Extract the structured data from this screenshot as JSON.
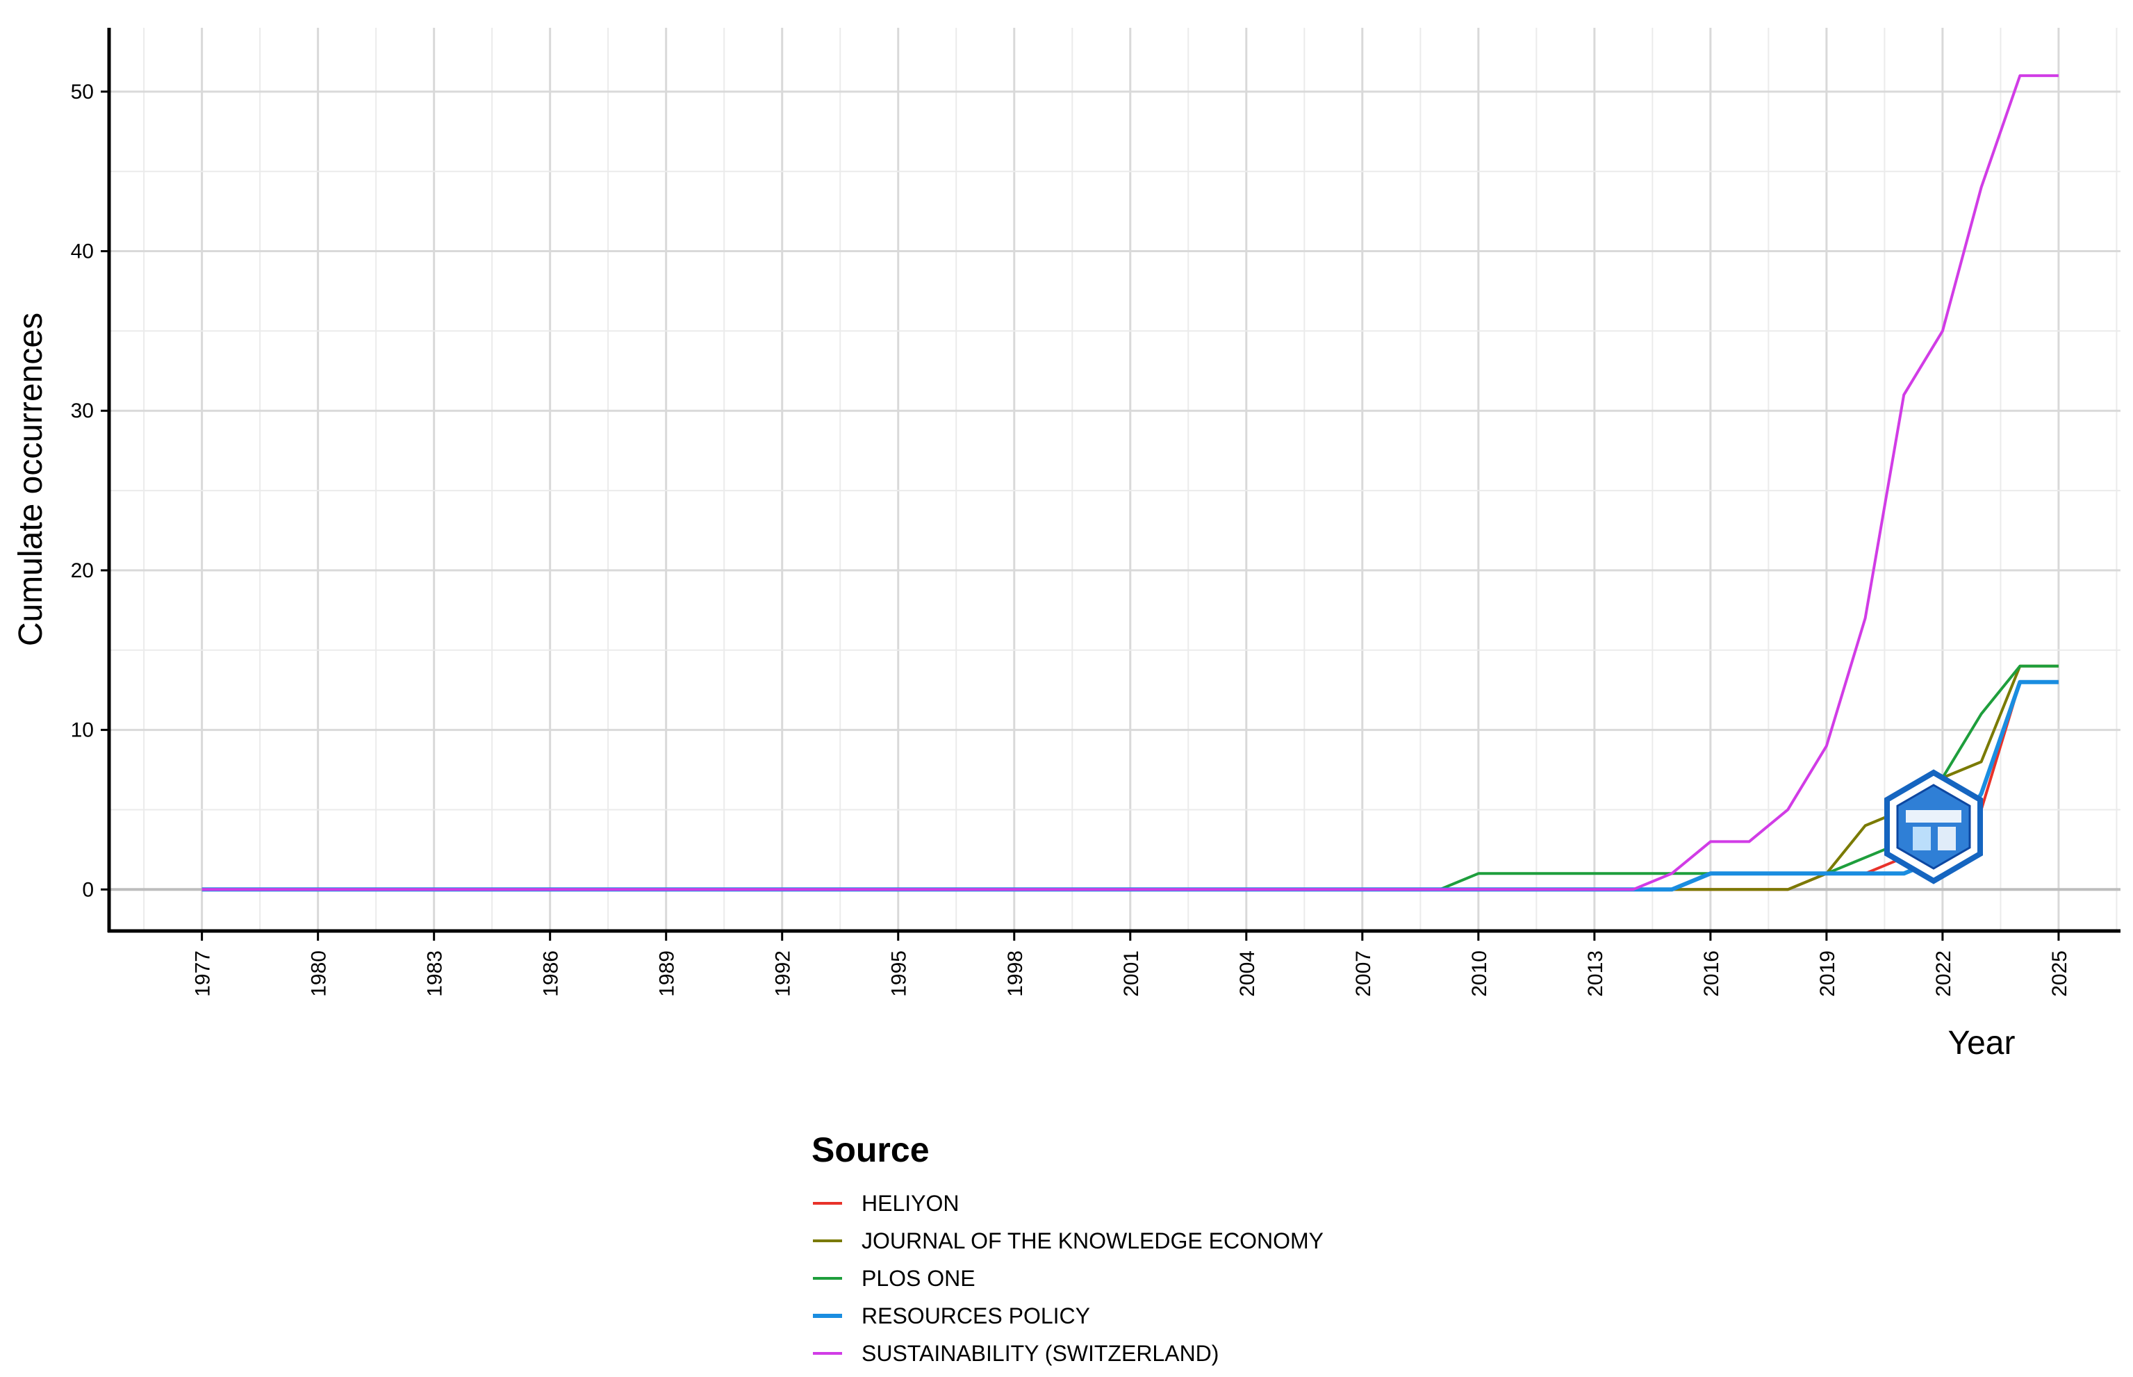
{
  "chart_data": {
    "type": "line",
    "title": "",
    "xlabel": "Year",
    "ylabel": "Cumulate occurrences",
    "xlim": [
      1974.6,
      2026.6
    ],
    "ylim": [
      -2.6,
      54
    ],
    "x_ticks": [
      "1977",
      "1980",
      "1983",
      "1986",
      "1989",
      "1992",
      "1995",
      "1998",
      "2001",
      "2004",
      "2007",
      "2010",
      "2013",
      "2016",
      "2019",
      "2022",
      "2025"
    ],
    "y_ticks": [
      "0",
      "10",
      "20",
      "30",
      "40",
      "50"
    ],
    "grid": true,
    "legend": {
      "title": "Source",
      "position": "bottom"
    },
    "series": [
      {
        "name": "HELIYON",
        "color": "#F8766D",
        "stroke": "#e8322a",
        "x": [
          1977,
          2017,
          2018,
          2019,
          2020,
          2021,
          2022,
          2023,
          2024,
          2025
        ],
        "y": [
          0,
          0,
          0,
          1,
          1,
          2,
          3,
          5,
          13,
          13
        ]
      },
      {
        "name": "JOURNAL OF THE KNOWLEDGE ECONOMY",
        "color": "#808000",
        "stroke": "#7a7a00",
        "x": [
          1977,
          2018,
          2019,
          2020,
          2021,
          2022,
          2023,
          2024,
          2025
        ],
        "y": [
          0,
          0,
          1,
          4,
          5,
          7,
          8,
          14,
          14
        ]
      },
      {
        "name": "PLOS ONE",
        "color": "#00A651",
        "stroke": "#1e9e3c",
        "x": [
          1977,
          2009,
          2010,
          2019,
          2020,
          2021,
          2022,
          2023,
          2024,
          2025
        ],
        "y": [
          0,
          0,
          1,
          1,
          2,
          3,
          7,
          11,
          14,
          14
        ]
      },
      {
        "name": "RESOURCES POLICY",
        "color": "#1E90FF",
        "stroke": "#1a8de0",
        "x": [
          1977,
          2014,
          2015,
          2016,
          2017,
          2018,
          2019,
          2020,
          2021,
          2022,
          2023,
          2024,
          2025
        ],
        "y": [
          0,
          0,
          0,
          1,
          1,
          1,
          1,
          1,
          1,
          2,
          6,
          13,
          13
        ]
      },
      {
        "name": "SUSTAINABILITY (SWITZERLAND)",
        "color": "#D633E8",
        "stroke": "#d13ce6",
        "x": [
          1977,
          2014,
          2015,
          2016,
          2017,
          2018,
          2019,
          2020,
          2021,
          2022,
          2023,
          2024,
          2025
        ],
        "y": [
          0,
          0,
          1,
          3,
          3,
          5,
          9,
          17,
          31,
          35,
          44,
          51,
          51
        ]
      }
    ]
  }
}
